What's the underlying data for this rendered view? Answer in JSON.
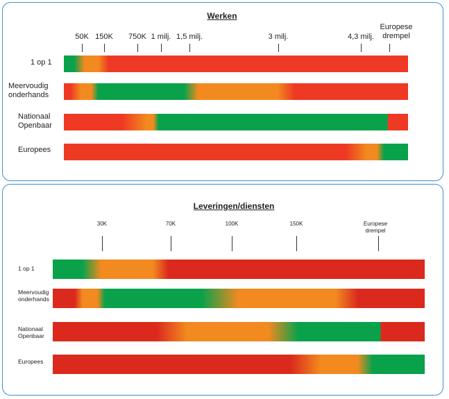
{
  "colors": {
    "green": "#0aa14b",
    "orange": "#f28a1f",
    "red": "#ee3a24",
    "red2": "#db2a1d",
    "border": "#3a8fd0"
  },
  "panel_works": {
    "title": "Werken",
    "ticks": [
      {
        "label": "50K"
      },
      {
        "label": "150K"
      },
      {
        "label": "750K"
      },
      {
        "label": "1 milj."
      },
      {
        "label": "1,5 milj."
      },
      {
        "label": "3 milj."
      },
      {
        "label": "4,3 milj."
      },
      {
        "label": "Europese\ndrempel"
      }
    ],
    "rows": [
      {
        "label": "1 op 1",
        "stops": [
          [
            "green",
            0
          ],
          [
            "green",
            3
          ],
          [
            "orange",
            6
          ],
          [
            "orange",
            10
          ],
          [
            "red",
            13
          ],
          [
            "red",
            100
          ]
        ]
      },
      {
        "label": "Meervoudig\nonderhands",
        "stops": [
          [
            "red",
            0
          ],
          [
            "red",
            2
          ],
          [
            "orange",
            5
          ],
          [
            "orange",
            8
          ],
          [
            "green",
            10
          ],
          [
            "green",
            35
          ],
          [
            "orange",
            39
          ],
          [
            "orange",
            62
          ],
          [
            "red",
            67
          ],
          [
            "red",
            100
          ]
        ]
      },
      {
        "label": "Nationaal\nOpenbaar",
        "stops": [
          [
            "red",
            0
          ],
          [
            "red",
            17
          ],
          [
            "orange",
            24
          ],
          [
            "orange",
            26
          ],
          [
            "green",
            27.5
          ],
          [
            "green",
            94
          ],
          [
            "red",
            94.2
          ],
          [
            "red",
            100
          ]
        ]
      },
      {
        "label": "Europees",
        "stops": [
          [
            "red",
            0
          ],
          [
            "red",
            82
          ],
          [
            "orange",
            88
          ],
          [
            "orange",
            91
          ],
          [
            "green",
            93
          ],
          [
            "green",
            100
          ]
        ]
      }
    ]
  },
  "panel_supplies": {
    "title": "Leveringen/diensten",
    "ticks": [
      {
        "label": "30K"
      },
      {
        "label": "70K"
      },
      {
        "label": "100K"
      },
      {
        "label": "150K"
      },
      {
        "label": "Europese\ndrempel"
      }
    ],
    "rows": [
      {
        "label": "1 op 1",
        "stops": [
          [
            "green",
            0
          ],
          [
            "green",
            8
          ],
          [
            "orange",
            13
          ],
          [
            "orange",
            27
          ],
          [
            "red2",
            31
          ],
          [
            "red2",
            100
          ]
        ]
      },
      {
        "label": "Meervoudig\nonderhands",
        "stops": [
          [
            "red2",
            0
          ],
          [
            "red2",
            6
          ],
          [
            "orange",
            8
          ],
          [
            "orange",
            12
          ],
          [
            "green",
            14
          ],
          [
            "green",
            40
          ],
          [
            "orange",
            50
          ],
          [
            "orange",
            76
          ],
          [
            "red2",
            82
          ],
          [
            "red2",
            100
          ]
        ]
      },
      {
        "label": "Nationaal\nOpenbaar",
        "stops": [
          [
            "red2",
            0
          ],
          [
            "red2",
            28
          ],
          [
            "orange",
            36
          ],
          [
            "orange",
            58
          ],
          [
            "green",
            66
          ],
          [
            "green",
            88
          ],
          [
            "red2",
            88.3
          ],
          [
            "red2",
            100
          ]
        ]
      },
      {
        "label": "Europees",
        "stops": [
          [
            "red2",
            0
          ],
          [
            "red2",
            64
          ],
          [
            "orange",
            72
          ],
          [
            "orange",
            82
          ],
          [
            "green",
            86
          ],
          [
            "green",
            100
          ]
        ]
      }
    ]
  }
}
